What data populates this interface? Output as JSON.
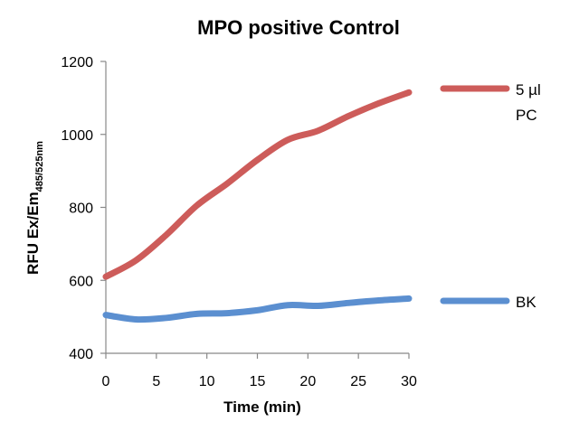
{
  "chart_data": {
    "type": "line",
    "title": "MPO positive Control",
    "xlabel": "Time (min)",
    "ylabel": "RFU Ex/Em",
    "ylabel_subscript": "485/525nm",
    "xlim": [
      0,
      30
    ],
    "ylim": [
      400,
      1200
    ],
    "xticks": [
      0,
      5,
      10,
      15,
      20,
      25,
      30
    ],
    "yticks": [
      400,
      600,
      800,
      1000,
      1200
    ],
    "grid": false,
    "legend_position": "right",
    "series": [
      {
        "name": "5 µl PC",
        "name_lines": [
          "5 µl",
          "PC"
        ],
        "color": "#CD5C5A",
        "x": [
          0,
          3,
          6,
          9,
          12,
          15,
          18,
          21,
          24,
          27,
          30
        ],
        "y": [
          610,
          655,
          725,
          805,
          865,
          930,
          985,
          1010,
          1050,
          1085,
          1115
        ]
      },
      {
        "name": "BK",
        "name_lines": [
          "BK"
        ],
        "color": "#5B8FD0",
        "x": [
          0,
          3,
          6,
          9,
          12,
          15,
          18,
          21,
          24,
          27,
          30
        ],
        "y": [
          505,
          493,
          497,
          508,
          510,
          518,
          532,
          530,
          538,
          545,
          550
        ]
      }
    ]
  }
}
